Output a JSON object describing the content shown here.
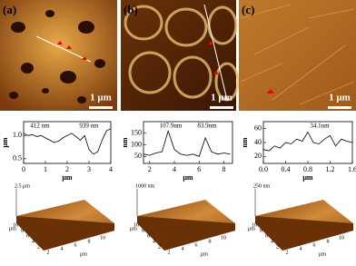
{
  "figure": {
    "panels": [
      {
        "label": "(a)",
        "scale_bar": "1 μm",
        "surface": {
          "z_label": "2.5 μm",
          "ticks": [
            "2",
            "4",
            "6",
            "8",
            "10"
          ],
          "axis_label": "μm"
        }
      },
      {
        "label": "(b)",
        "scale_bar": "1 μm",
        "surface": {
          "z_label": "1000 nm",
          "ticks": [
            "2",
            "4",
            "6",
            "8",
            "10"
          ],
          "axis_label": "μm"
        }
      },
      {
        "label": "(c)",
        "scale_bar": "1 μm",
        "surface": {
          "z_label": "250 nm",
          "ticks": [
            "2",
            "4",
            "6",
            "8",
            "10"
          ],
          "axis_label": "μm"
        }
      }
    ]
  },
  "chart_data": [
    {
      "type": "line",
      "x_label": "μm",
      "y_label": "μm",
      "annotations": [
        "412 nm",
        "939 nm"
      ],
      "x": [
        0,
        0.2,
        0.4,
        0.6,
        0.8,
        1,
        1.2,
        1.4,
        1.6,
        1.8,
        2,
        2.2,
        2.4,
        2.6,
        2.8,
        3,
        3.2,
        3.4,
        3.6,
        3.8,
        4
      ],
      "values": [
        1.05,
        1.0,
        1.02,
        0.98,
        1.0,
        0.95,
        0.9,
        0.85,
        0.88,
        0.95,
        1.0,
        1.05,
        0.98,
        0.9,
        1.0,
        0.7,
        0.6,
        0.65,
        0.9,
        1.1,
        1.15
      ],
      "color": "#000000",
      "xlim": [
        0,
        4
      ],
      "xticks": [
        0,
        1,
        2,
        3,
        4
      ],
      "ylim": [
        0.4,
        1.3
      ],
      "yticks": [
        {
          "value": 0.5,
          "label": "0.5"
        },
        {
          "value": 1,
          "label": "1.0"
        }
      ]
    },
    {
      "type": "line",
      "x_label": "μm",
      "y_label": "nm",
      "annotations": [
        "107.9nm",
        "83.9nm"
      ],
      "x": [
        1.5,
        2,
        2.5,
        3,
        3.5,
        4,
        4.5,
        5,
        5.5,
        6,
        6.5,
        7,
        7.5,
        8,
        8.5
      ],
      "values": [
        60,
        55,
        65,
        70,
        160,
        80,
        60,
        55,
        60,
        50,
        130,
        70,
        60,
        65,
        60
      ],
      "color": "#000000",
      "xlim": [
        1.5,
        8.7
      ],
      "xticks": [
        2,
        4,
        6,
        8
      ],
      "ylim": [
        20,
        200
      ],
      "yticks": [
        50,
        100,
        150
      ]
    },
    {
      "type": "line",
      "x_label": "μm",
      "y_label": "nm",
      "annotations": [
        "34.1nm"
      ],
      "x": [
        0,
        0.1,
        0.2,
        0.3,
        0.4,
        0.5,
        0.6,
        0.7,
        0.8,
        0.9,
        1,
        1.1,
        1.2,
        1.3,
        1.4,
        1.5,
        1.6
      ],
      "values": [
        30,
        28,
        35,
        32,
        40,
        38,
        45,
        42,
        55,
        40,
        38,
        45,
        50,
        35,
        45,
        42,
        40
      ],
      "color": "#000000",
      "xlim": [
        0,
        1.6
      ],
      "xticks": [
        {
          "value": 0,
          "label": "0.0"
        },
        {
          "value": 0.4,
          "label": "0.4"
        },
        {
          "value": 0.8,
          "label": "0.8"
        },
        {
          "value": 1.2,
          "label": "1.2"
        },
        {
          "value": 1.6,
          "label": "1.6"
        }
      ],
      "ylim": [
        10,
        70
      ],
      "yticks": [
        20,
        40,
        60
      ]
    }
  ]
}
